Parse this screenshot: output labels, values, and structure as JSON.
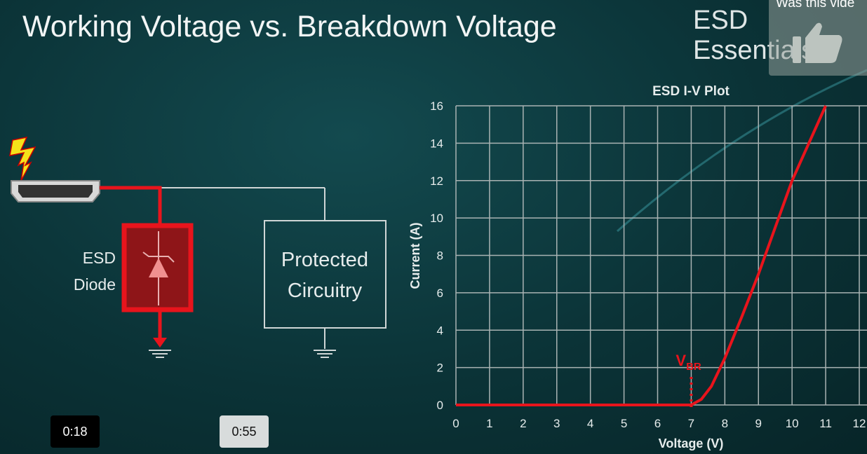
{
  "slide": {
    "title": "Working Voltage vs. Breakdown Voltage",
    "brand": "ESD Essentials"
  },
  "diagram": {
    "diode_label_line1": "ESD",
    "diode_label_line2": "Diode",
    "box_label_line1": "Protected",
    "box_label_line2": "Circuitry",
    "icons": [
      "lightning-icon",
      "hdmi-connector-icon",
      "tvs-diode-icon",
      "ground-icon"
    ],
    "surge_color": "#e8141c"
  },
  "feedback": {
    "text": "Was this vide",
    "icon": "thumbs-up-icon"
  },
  "player": {
    "current_time": "0:18",
    "duration": "0:55"
  },
  "chart_data": {
    "type": "line",
    "title": "ESD I-V Plot",
    "xlabel": "Voltage (V)",
    "ylabel": "Current (A)",
    "xlim": [
      0,
      12
    ],
    "ylim": [
      0,
      16
    ],
    "xticks": [
      0,
      1,
      2,
      3,
      4,
      5,
      6,
      7,
      8,
      9,
      10,
      11,
      12
    ],
    "yticks": [
      0,
      2,
      4,
      6,
      8,
      10,
      12,
      14,
      16
    ],
    "grid": true,
    "annotation": {
      "text": "V",
      "subscript": "BR",
      "x": 7
    },
    "series": [
      {
        "color": "#e8141c",
        "x": [
          0,
          6,
          7,
          7.3,
          7.6,
          8,
          8.5,
          9,
          9.5,
          10,
          10.5,
          11
        ],
        "y": [
          0,
          0,
          0,
          0.3,
          1,
          2.5,
          4.7,
          7,
          9.5,
          12,
          14,
          16
        ]
      }
    ]
  }
}
